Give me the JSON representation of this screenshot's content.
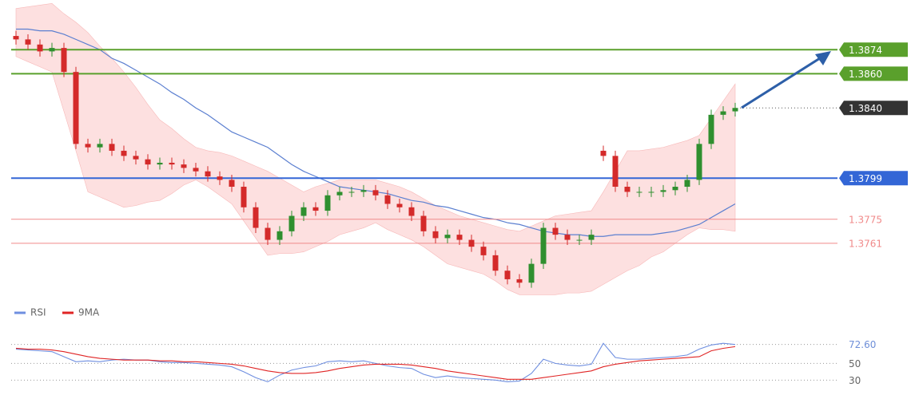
{
  "chart_data": [
    {
      "type": "candlestick",
      "ylim": [
        1.3726,
        1.3903
      ],
      "up_color": "#2f8f2f",
      "down_color": "#d42a2a",
      "open": [
        1.3882,
        1.388,
        1.3877,
        1.3873,
        1.3875,
        1.3861,
        1.3819,
        1.3817,
        1.3819,
        1.3815,
        1.3812,
        1.381,
        1.3807,
        1.3808,
        1.3807,
        1.3805,
        1.3803,
        1.38,
        1.3798,
        1.3794,
        1.3782,
        1.377,
        1.3763,
        1.3768,
        1.3777,
        1.3782,
        1.378,
        1.3789,
        1.3791,
        1.3791,
        1.3792,
        1.3789,
        1.3784,
        1.3782,
        1.3777,
        1.3768,
        1.3764,
        1.3766,
        1.3763,
        1.3759,
        1.3754,
        1.3745,
        1.374,
        1.3738,
        1.3749,
        1.377,
        1.3766,
        1.3763,
        1.3763,
        1.3815,
        1.3812,
        1.3794,
        1.3791,
        1.3791,
        1.3791,
        1.3792,
        1.3794,
        1.3798,
        1.3819,
        1.3836,
        1.3838
      ],
      "high": [
        1.3885,
        1.3883,
        1.388,
        1.3878,
        1.3878,
        1.3864,
        1.3822,
        1.3822,
        1.3822,
        1.3818,
        1.3815,
        1.3813,
        1.3811,
        1.3811,
        1.381,
        1.3808,
        1.3806,
        1.3803,
        1.3801,
        1.3797,
        1.3785,
        1.3773,
        1.3771,
        1.378,
        1.3785,
        1.3785,
        1.3792,
        1.3794,
        1.3794,
        1.3795,
        1.3795,
        1.3792,
        1.3787,
        1.3785,
        1.378,
        1.3771,
        1.3769,
        1.3769,
        1.3766,
        1.3762,
        1.3757,
        1.3748,
        1.3743,
        1.3752,
        1.3773,
        1.3773,
        1.3769,
        1.3766,
        1.3769,
        1.3818,
        1.3815,
        1.3797,
        1.3794,
        1.3794,
        1.3795,
        1.3797,
        1.3801,
        1.3822,
        1.3839,
        1.3841,
        1.3843
      ],
      "low": [
        1.3877,
        1.3874,
        1.387,
        1.387,
        1.3858,
        1.3816,
        1.3814,
        1.3814,
        1.3812,
        1.3809,
        1.3807,
        1.3804,
        1.3804,
        1.3804,
        1.3802,
        1.38,
        1.3797,
        1.3795,
        1.3791,
        1.3779,
        1.3767,
        1.376,
        1.376,
        1.3765,
        1.3774,
        1.3777,
        1.3777,
        1.3786,
        1.3788,
        1.3788,
        1.3786,
        1.3781,
        1.3779,
        1.3774,
        1.3765,
        1.3761,
        1.3761,
        1.376,
        1.3756,
        1.3751,
        1.3742,
        1.3737,
        1.3735,
        1.3735,
        1.3746,
        1.3763,
        1.376,
        1.376,
        1.376,
        1.3809,
        1.3791,
        1.3788,
        1.3788,
        1.3788,
        1.3788,
        1.3789,
        1.3791,
        1.3795,
        1.3816,
        1.3833,
        1.3835
      ],
      "close": [
        1.388,
        1.3877,
        1.3873,
        1.3875,
        1.3861,
        1.3819,
        1.3817,
        1.3819,
        1.3815,
        1.3812,
        1.381,
        1.3807,
        1.3808,
        1.3807,
        1.3805,
        1.3803,
        1.38,
        1.3798,
        1.3794,
        1.3782,
        1.377,
        1.3763,
        1.3768,
        1.3777,
        1.3782,
        1.378,
        1.3789,
        1.3791,
        1.3791,
        1.3792,
        1.3789,
        1.3784,
        1.3782,
        1.3777,
        1.3768,
        1.3764,
        1.3766,
        1.3763,
        1.3759,
        1.3754,
        1.3745,
        1.374,
        1.3738,
        1.3749,
        1.377,
        1.3766,
        1.3763,
        1.3763,
        1.3766,
        1.3812,
        1.3794,
        1.3791,
        1.3791,
        1.3791,
        1.3792,
        1.3794,
        1.3798,
        1.3819,
        1.3836,
        1.3838,
        1.384
      ],
      "band": {
        "color": "#fde0e0",
        "upper": [
          1.3898,
          1.3899,
          1.39,
          1.3901,
          1.3895,
          1.389,
          1.3884,
          1.3876,
          1.3869,
          1.3861,
          1.3852,
          1.3842,
          1.3833,
          1.3828,
          1.3822,
          1.3817,
          1.3815,
          1.3814,
          1.3812,
          1.3809,
          1.3806,
          1.3803,
          1.3799,
          1.3795,
          1.3791,
          1.3794,
          1.3796,
          1.3798,
          1.3798,
          1.3798,
          1.3798,
          1.3796,
          1.3794,
          1.3791,
          1.3787,
          1.3783,
          1.378,
          1.3777,
          1.3775,
          1.3773,
          1.3771,
          1.3769,
          1.3768,
          1.3771,
          1.3774,
          1.3777,
          1.3778,
          1.3779,
          1.378,
          1.3791,
          1.3803,
          1.3815,
          1.3815,
          1.3816,
          1.3817,
          1.3819,
          1.3821,
          1.3824,
          1.3834,
          1.3844,
          1.3854
        ],
        "lower": [
          1.387,
          1.3867,
          1.3864,
          1.3861,
          1.3838,
          1.3815,
          1.3791,
          1.3788,
          1.3785,
          1.3782,
          1.3783,
          1.3785,
          1.3786,
          1.379,
          1.3795,
          1.3798,
          1.3794,
          1.3789,
          1.3784,
          1.3774,
          1.3764,
          1.3754,
          1.3755,
          1.3755,
          1.3756,
          1.3759,
          1.3762,
          1.3766,
          1.3768,
          1.377,
          1.3773,
          1.3769,
          1.3766,
          1.3763,
          1.3759,
          1.3754,
          1.3749,
          1.3747,
          1.3745,
          1.3743,
          1.3739,
          1.3734,
          1.3731,
          1.3731,
          1.3731,
          1.3731,
          1.3732,
          1.3732,
          1.3733,
          1.3737,
          1.3741,
          1.3745,
          1.3748,
          1.3753,
          1.3756,
          1.3761,
          1.3766,
          1.377,
          1.3769,
          1.3769,
          1.3768
        ]
      },
      "ma": {
        "color": "#5b7fd0",
        "values": [
          1.3886,
          1.3886,
          1.3885,
          1.3885,
          1.3883,
          1.388,
          1.3877,
          1.3874,
          1.3869,
          1.3866,
          1.3862,
          1.3858,
          1.3854,
          1.3849,
          1.3845,
          1.384,
          1.3836,
          1.3831,
          1.3826,
          1.3823,
          1.382,
          1.3817,
          1.3812,
          1.3807,
          1.3803,
          1.38,
          1.3797,
          1.3794,
          1.3793,
          1.3792,
          1.3791,
          1.379,
          1.3788,
          1.3786,
          1.3785,
          1.3783,
          1.3782,
          1.378,
          1.3778,
          1.3776,
          1.3775,
          1.3773,
          1.3772,
          1.377,
          1.3768,
          1.3767,
          1.3766,
          1.3766,
          1.3765,
          1.3765,
          1.3766,
          1.3766,
          1.3766,
          1.3766,
          1.3767,
          1.3768,
          1.377,
          1.3772,
          1.3776,
          1.378,
          1.3784
        ]
      },
      "levels": [
        {
          "value": 1.3874,
          "color": "#5aa02c",
          "tag": true
        },
        {
          "value": 1.386,
          "label": "1.3860",
          "color": "#5aa02c",
          "tag": true
        },
        {
          "value": 1.384,
          "label": "1.3840",
          "color": "#333333",
          "tag": true,
          "dotted": true
        },
        {
          "value": 1.3799,
          "color": "#3366d6",
          "tag": true
        },
        {
          "value": 1.3775,
          "color": "#f08a8a",
          "tag": false
        },
        {
          "value": 1.3761,
          "color": "#f08a8a",
          "tag": false
        }
      ]
    },
    {
      "type": "line",
      "ylim": [
        17,
        98
      ],
      "yticks": [
        {
          "value": 72.6,
          "label": "72.60",
          "color": "#6f8fd8"
        },
        50,
        30
      ],
      "grid": true,
      "series": [
        {
          "name": "RSI",
          "color": "#6f8fe0",
          "values": [
            67,
            66,
            65,
            64,
            58,
            52,
            53,
            52,
            54,
            55,
            54,
            54,
            52,
            51,
            51,
            50,
            49,
            48,
            46,
            40,
            33,
            28,
            36,
            42,
            45,
            47,
            52,
            53,
            52,
            53,
            50,
            47,
            45,
            44,
            37,
            33,
            35,
            33,
            32,
            31,
            30,
            28,
            29,
            38,
            55,
            50,
            48,
            47,
            49,
            74,
            57,
            55,
            55,
            56,
            57,
            58,
            60,
            67,
            72,
            74,
            72.6
          ]
        },
        {
          "name": "9MA",
          "color": "#e02424",
          "values": [
            68,
            67,
            67,
            66,
            64,
            61,
            58,
            56,
            55,
            54,
            54,
            54,
            53,
            53,
            52,
            52,
            51,
            50,
            49,
            47,
            44,
            41,
            39,
            38,
            38,
            39,
            41,
            44,
            46,
            48,
            49,
            49,
            49,
            48,
            46,
            44,
            41,
            39,
            37,
            35,
            33,
            31,
            31,
            31,
            33,
            35,
            37,
            39,
            41,
            46,
            49,
            51,
            53,
            54,
            55,
            56,
            57,
            58,
            65,
            68,
            70
          ]
        }
      ]
    }
  ]
}
